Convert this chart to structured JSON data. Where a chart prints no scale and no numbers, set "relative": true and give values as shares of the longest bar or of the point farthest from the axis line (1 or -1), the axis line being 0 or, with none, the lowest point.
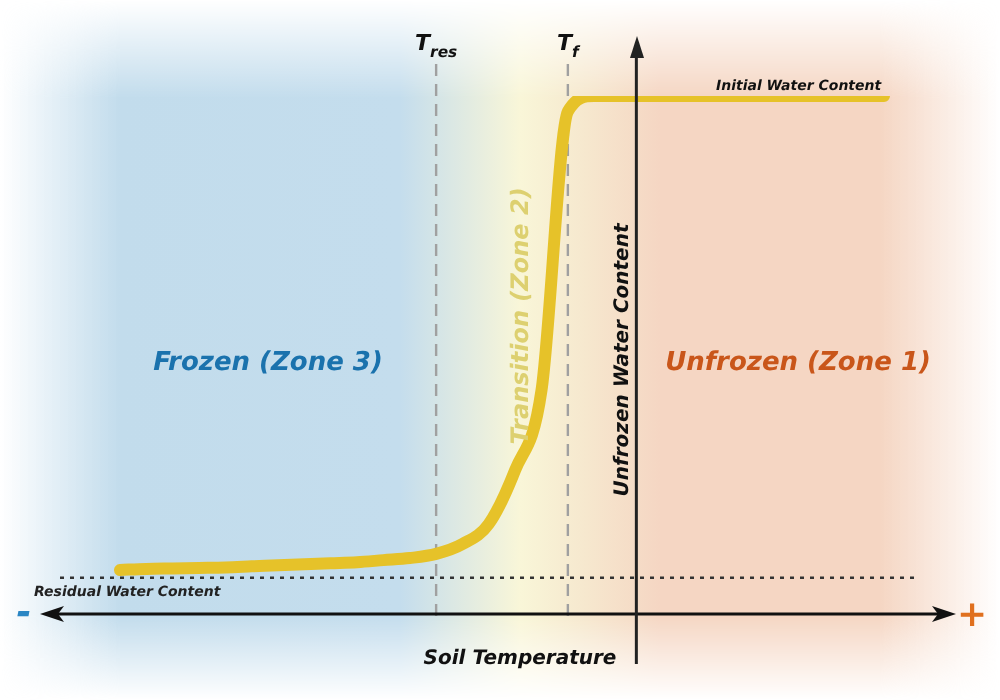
{
  "chart_data": {
    "type": "line",
    "relative": true,
    "xlabel": "Soil Temperature",
    "ylabel": "Unfrozen Water Content",
    "categories": [
      null,
      null,
      null,
      null,
      null,
      null,
      null,
      null,
      null,
      null,
      null,
      null,
      "T$_{res}$",
      null,
      null,
      null,
      null,
      "T$_{f}$",
      null,
      null,
      null,
      null,
      null,
      null,
      null,
      null,
      null,
      null,
      null,
      null
    ],
    "series": [
      {
        "color": "#e6c229",
        "values": [
          0.085,
          0.087,
          0.088,
          0.089,
          0.09,
          0.092,
          0.094,
          0.096,
          0.098,
          0.1,
          0.104,
          0.108,
          0.116,
          0.135,
          0.174,
          0.278,
          0.432,
          0.97,
          1,
          1,
          1,
          1,
          1,
          1,
          1,
          1,
          1,
          1,
          1,
          1
        ]
      }
    ],
    "ref_lines": [
      {
        "axis": "x",
        "value": "T$_{res}$",
        "color": "#a0a0a0",
        "line_style": "dashed"
      },
      {
        "axis": "x",
        "value": "T$_{f}$",
        "color": "#a0a0a0",
        "line_style": "dashed"
      },
      {
        "axis": "y",
        "value": 0.07,
        "label": "Residual Water Content",
        "color": "#333333",
        "line_style": "dotted"
      }
    ],
    "annotations": [
      "Initial Water Content",
      "Frozen (Zone 3)",
      "Transition (Zone 2)",
      "Unfrozen (Zone 1)",
      "-",
      "+"
    ],
    "legend": false,
    "grid": false,
    "marker": "none",
    "line_style": "solid"
  }
}
